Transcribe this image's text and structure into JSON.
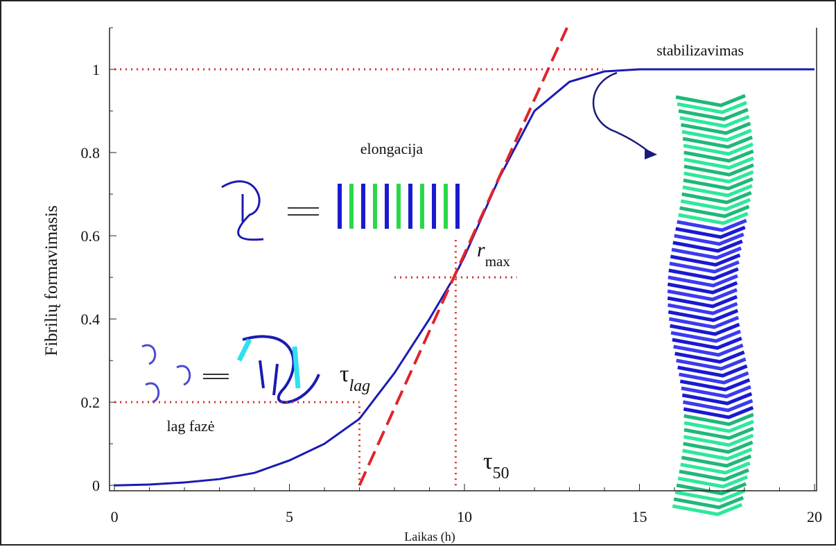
{
  "chart_data": {
    "type": "line",
    "xlabel": "Laikas (h)",
    "ylabel": "Fibrilių formavimasis",
    "xlim": [
      -0.14,
      20.06
    ],
    "ylim": [
      -0.013,
      1.1
    ],
    "xticks": [
      0,
      5,
      10,
      15,
      20
    ],
    "yticks": [
      0,
      0.2,
      0.4,
      0.6,
      0.8,
      1
    ],
    "xticks_minor": [
      1,
      2,
      3,
      4,
      6,
      7,
      8,
      9,
      11,
      12,
      13,
      14,
      16,
      17,
      18,
      19
    ],
    "yticks_minor": [
      0.1,
      0.3,
      0.5,
      0.7,
      0.9,
      1.1
    ],
    "series": [
      {
        "color": "#1a1ab4",
        "style": "solid",
        "x": [
          0,
          1,
          2,
          3,
          4,
          5,
          6,
          7,
          8,
          9,
          9.7,
          10,
          11,
          12,
          13,
          14,
          15,
          20
        ],
        "values": [
          0,
          0.002,
          0.007,
          0.015,
          0.03,
          0.06,
          0.1,
          0.16,
          0.27,
          0.4,
          0.5,
          0.55,
          0.74,
          0.9,
          0.97,
          0.995,
          1,
          1
        ]
      },
      {
        "color": "#e0242a",
        "style": "dashed",
        "x": [
          7,
          12.93
        ],
        "values": [
          0,
          1.1
        ]
      }
    ],
    "guides": [
      {
        "x": [
          0,
          13.96
        ],
        "values": [
          1,
          1
        ]
      },
      {
        "x": [
          8,
          11.5
        ],
        "values": [
          0.5,
          0.5
        ]
      },
      {
        "x": [
          9.75,
          9.75
        ],
        "values": [
          0,
          0.6
        ]
      },
      {
        "x": [
          0,
          7
        ],
        "values": [
          0.2,
          0.2
        ]
      },
      {
        "x": [
          7,
          7
        ],
        "values": [
          0,
          0.2
        ]
      }
    ],
    "guide_color": "#d02a2a",
    "annotations": [
      {
        "text": "stabilizavimas"
      },
      {
        "text": "elongacija"
      },
      {
        "text": "lag fazė"
      },
      {
        "text": "τ",
        "sub": "lag"
      },
      {
        "text": "r",
        "sub": "max"
      },
      {
        "text": "τ",
        "sub": "50"
      }
    ]
  }
}
